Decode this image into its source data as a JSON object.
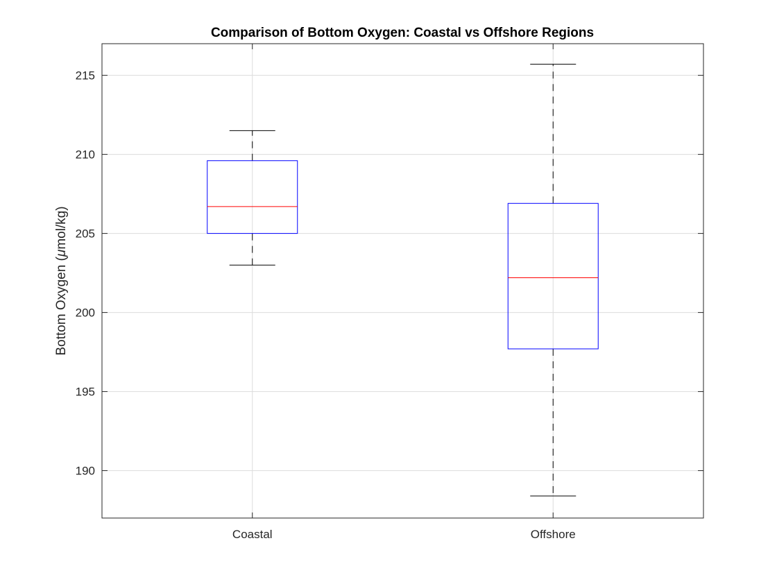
{
  "chart_data": {
    "type": "box",
    "title": "Comparison of Bottom Oxygen: Coastal vs Offshore Regions",
    "xlabel": "",
    "ylabel_parts": [
      "Bottom Oxygen (",
      "μ",
      "mol/kg)"
    ],
    "categories": [
      "Coastal",
      "Offshore"
    ],
    "ylim": [
      187,
      217
    ],
    "yticks": [
      190,
      195,
      200,
      205,
      210,
      215
    ],
    "grid": true,
    "boxes": [
      {
        "category": "Coastal",
        "min": 203.0,
        "q1": 205.0,
        "median": 206.7,
        "q3": 209.6,
        "max": 211.5
      },
      {
        "category": "Offshore",
        "min": 188.4,
        "q1": 197.7,
        "median": 202.2,
        "q3": 206.9,
        "max": 215.7
      }
    ],
    "colors": {
      "box": "#0000ff",
      "median": "#ff0000",
      "whisker": "#000000",
      "grid": "#dcdcdc",
      "axis": "#262626"
    }
  }
}
